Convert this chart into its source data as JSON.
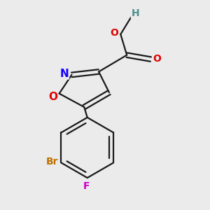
{
  "background_color": "#ebebeb",
  "bond_color": "#1a1a1a",
  "fig_size": [
    3.0,
    3.0
  ],
  "dpi": 100,
  "atom_colors": {
    "N": "#1400ff",
    "O": "#e00000",
    "H": "#4a9090",
    "Br": "#c07000",
    "F": "#cc00cc"
  },
  "font_size": 11
}
